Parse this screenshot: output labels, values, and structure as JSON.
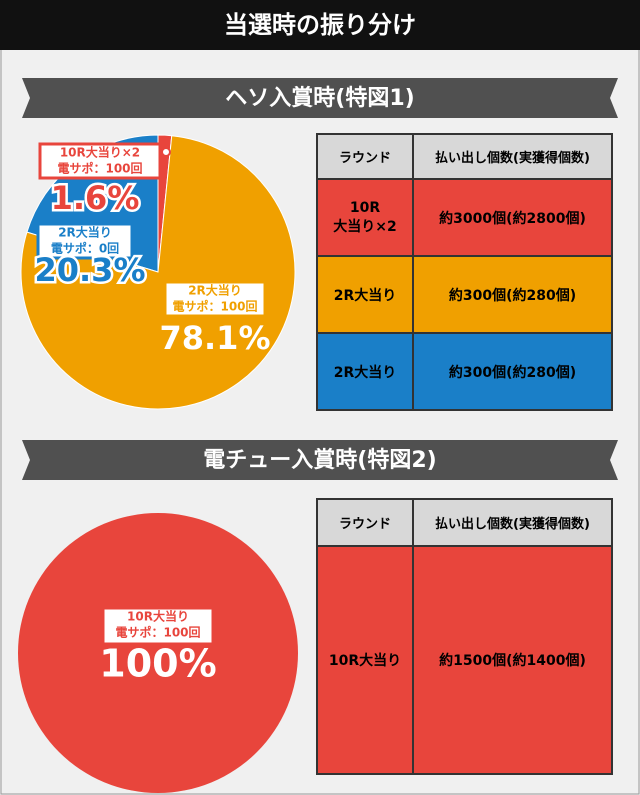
{
  "title": "当選時の振り分け",
  "chart_data": [
    {
      "type": "pie",
      "title": "ヘソ入賞時(特図1)",
      "categories": [
        [
          "10R大当り×2",
          "電サポ：100回"
        ],
        [
          "2R大当り",
          "電サポ：0回"
        ],
        [
          "2R大当り",
          "電サポ：100回"
        ]
      ],
      "values": [
        1.6,
        20.3,
        78.1
      ],
      "value_labels": [
        "1.6%",
        "20.3%",
        "78.1%"
      ],
      "colors": [
        "#e8453c",
        "#1a7fc8",
        "#f0a000"
      ]
    },
    {
      "type": "pie",
      "title": "電チュー入賞時(特図2)",
      "categories": [
        [
          "10R大当り",
          "電サポ：100回"
        ]
      ],
      "values": [
        100
      ],
      "value_labels": [
        "100%"
      ],
      "colors": [
        "#e8453c"
      ]
    }
  ],
  "tables": [
    {
      "header": [
        "ラウンド",
        "払い出し個数(実獲得個数)"
      ],
      "rows": [
        [
          "10R\n大当り×2",
          "約3000個(約2800個)"
        ],
        [
          "2R大当り",
          "約300個(約280個)"
        ],
        [
          "2R大当り",
          "約300個(約280個)"
        ]
      ],
      "row_colors": [
        "#e8453c",
        "#f0a000",
        "#1a7fc8"
      ]
    },
    {
      "header": [
        "ラウンド",
        "払い出し個数(実獲得個数)"
      ],
      "rows": [
        [
          "10R大当り",
          "約1500個(約1400個)"
        ]
      ],
      "row_colors": [
        "#e8453c"
      ]
    }
  ]
}
